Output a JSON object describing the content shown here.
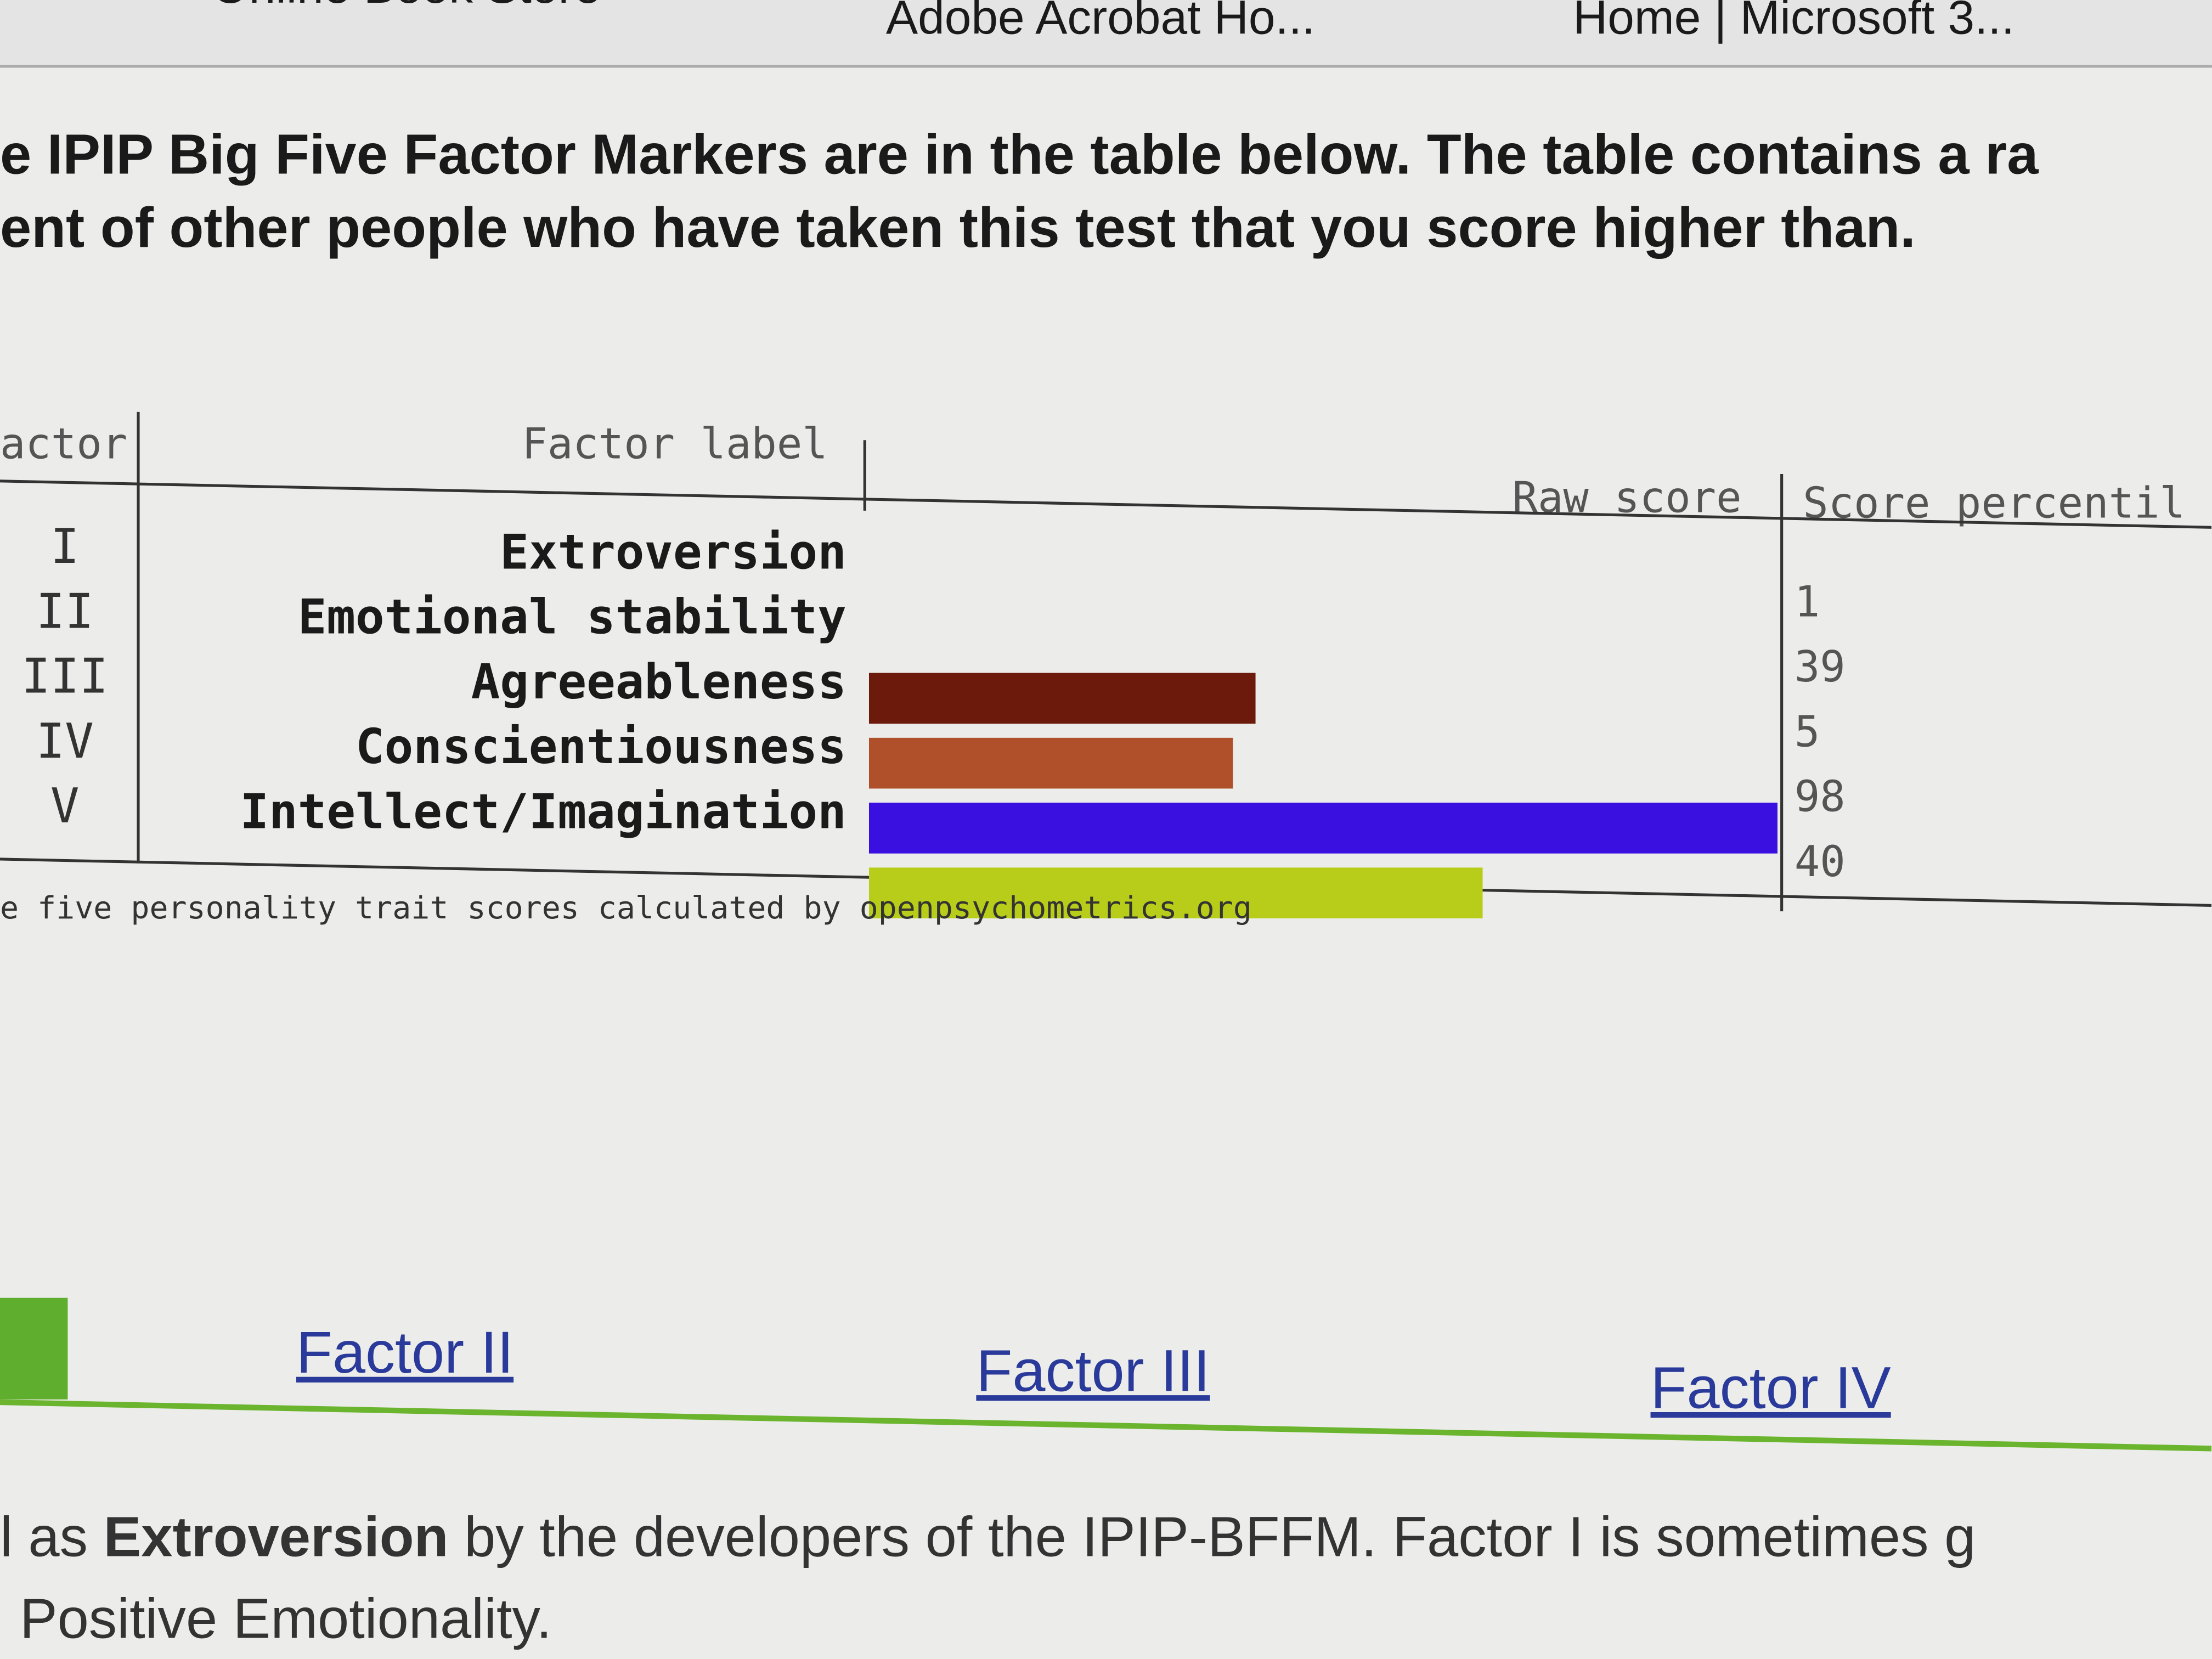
{
  "browser_tabs": [
    "Online Book Store",
    "Adobe Acrobat Ho...",
    "Home | Microsoft 3..."
  ],
  "intro": [
    "e IPIP Big Five Factor Markers are in the table below. The table contains a ra",
    "ent of other people who have taken this test that you score higher than."
  ],
  "table": {
    "headers": [
      "actor",
      "Factor label",
      "Raw score",
      "Score percentil"
    ],
    "raw_score_range": [
      0,
      40
    ],
    "rows": [
      {
        "factor": "I",
        "label": "Extroversion",
        "raw_score": 0,
        "percentile": 1
      },
      {
        "factor": "II",
        "label": "Emotional stability",
        "raw_score": 17,
        "color": "#6b1a0c",
        "percentile": 39
      },
      {
        "factor": "III",
        "label": "Agreeableness",
        "raw_score": 16,
        "color": "#b0502a",
        "percentile": 5
      },
      {
        "factor": "IV",
        "label": "Conscientiousness",
        "raw_score": 40,
        "color": "#3a10e0",
        "percentile": 98
      },
      {
        "factor": "V",
        "label": "Intellect/Imagination",
        "raw_score": 27,
        "color": "#b8cc1a",
        "percentile": 40
      }
    ],
    "caption": "e five personality trait scores calculated by openpsychometrics.org"
  },
  "factor_tabs": [
    "Factor II",
    "Factor III",
    "Factor IV"
  ],
  "description": {
    "lead": "l as",
    "term": "Extroversion",
    "rest": "by the developers of the IPIP-BFFM. Factor I is sometimes g",
    "line2": "Positive Emotionality."
  }
}
